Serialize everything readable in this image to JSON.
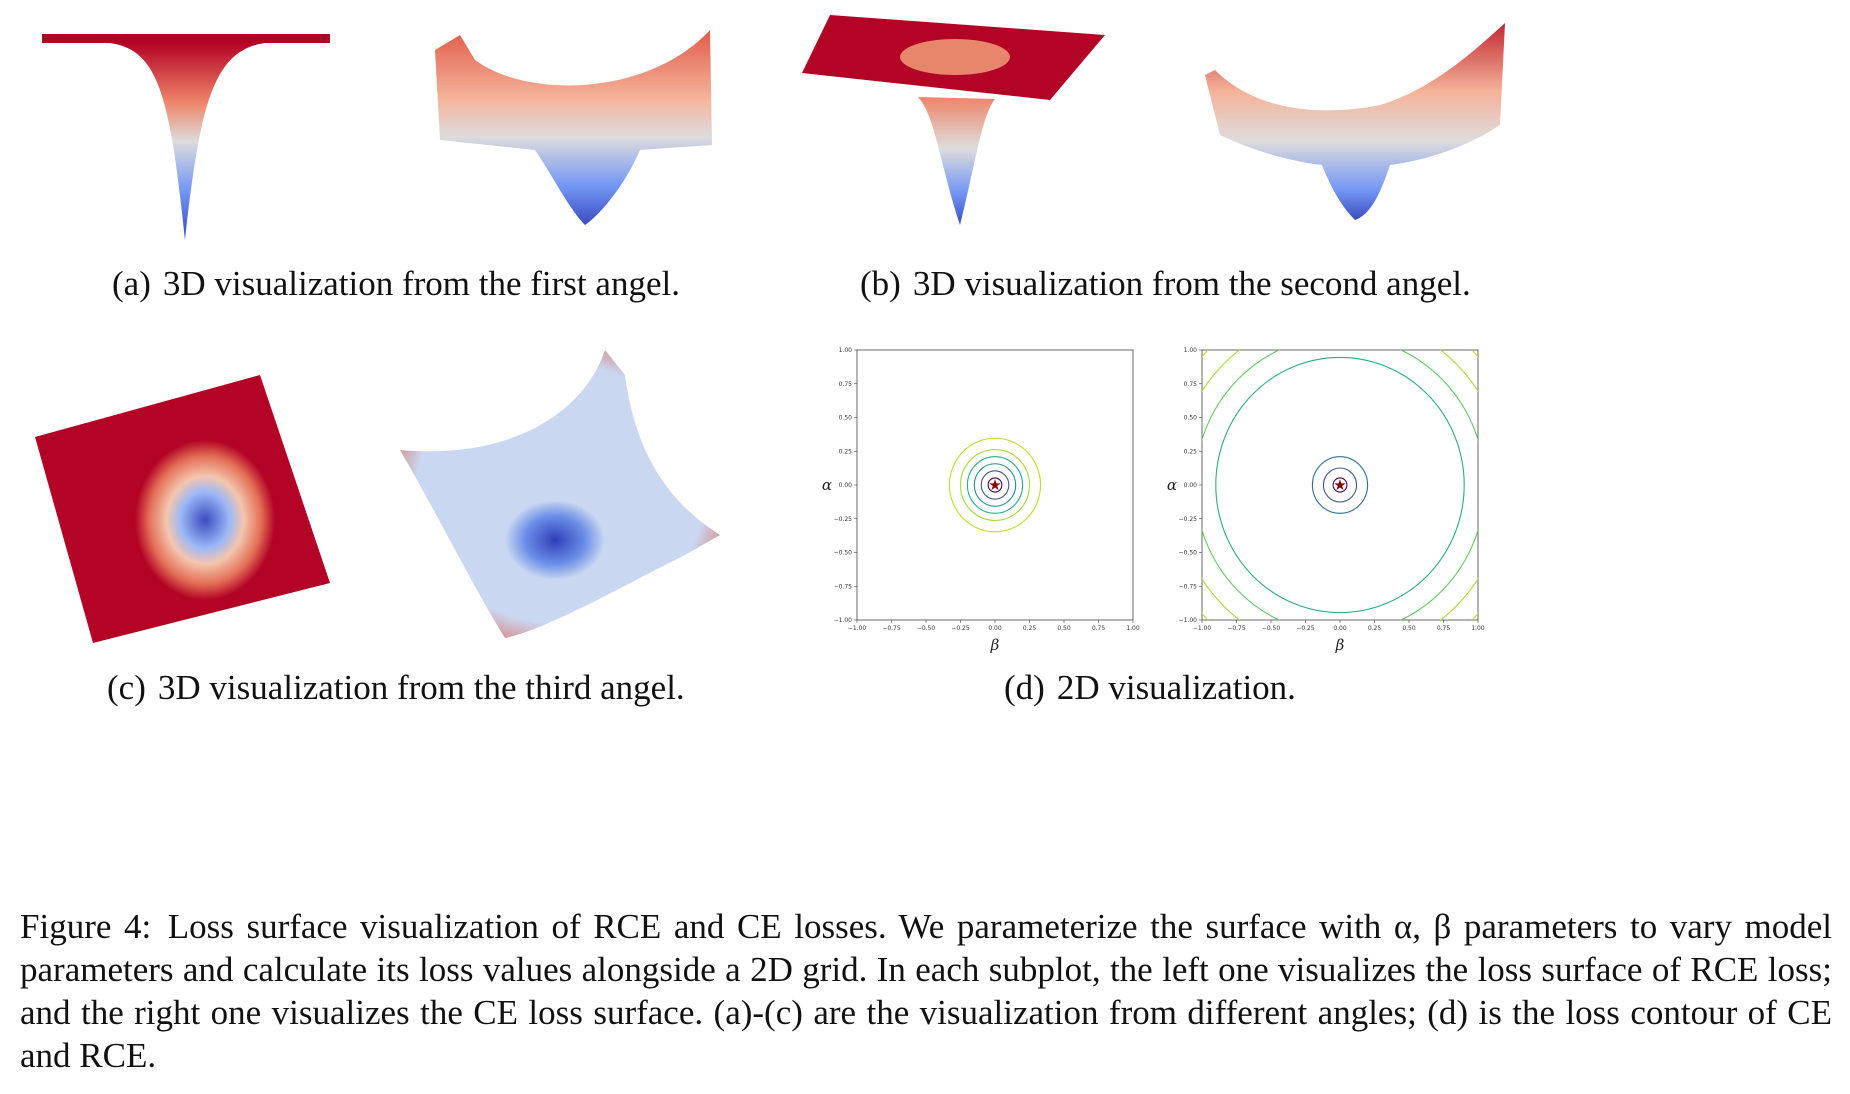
{
  "subcaptions": {
    "a": {
      "tag": "(a)",
      "text": "3D visualization from the first angel."
    },
    "b": {
      "tag": "(b)",
      "text": "3D visualization from the second angel."
    },
    "c": {
      "tag": "(c)",
      "text": "3D visualization from the third angel."
    },
    "d": {
      "tag": "(d)",
      "text": "2D visualization."
    }
  },
  "caption": {
    "label": "Figure 4:",
    "text": "Loss surface visualization of RCE and CE losses. We parameterize the surface with α, β parameters to vary model parameters and calculate its loss values alongside a 2D grid. In each subplot, the left one visualizes the loss surface of RCE loss; and the right one visualizes the CE loss surface. (a)-(c) are the visualization from different angles; (d) is the loss contour of CE and RCE."
  },
  "colors": {
    "surface_high": "#b40426",
    "surface_mid": "#dddcdc",
    "surface_low": "#3b4cc0",
    "contour_inner": "#440154",
    "contour_mid": "#21918c",
    "contour_outer": "#bddf26",
    "star": "#8b0000"
  },
  "chart_data": [
    {
      "type": "contour",
      "xlabel": "β",
      "ylabel": "α",
      "xlim": [
        -1.0,
        1.0
      ],
      "ylim": [
        -1.0,
        1.0
      ],
      "x_ticks": [
        "−1.00",
        "−0.75",
        "−0.50",
        "−0.25",
        "0.00",
        "0.25",
        "0.50",
        "0.75",
        "1.00"
      ],
      "y_ticks": [
        "1.00",
        "0.75",
        "0.50",
        "0.25",
        "0.00",
        "−0.25",
        "−0.50",
        "−0.75",
        "−1.00"
      ],
      "minimum": [
        0.0,
        0.0
      ],
      "contour_radii": [
        0.05,
        0.1,
        0.15,
        0.2,
        0.25,
        0.33
      ]
    },
    {
      "type": "contour",
      "xlabel": "β",
      "ylabel": "α",
      "xlim": [
        -1.0,
        1.0
      ],
      "ylim": [
        -1.0,
        1.0
      ],
      "x_ticks": [
        "−1.00",
        "−0.75",
        "−0.50",
        "−0.25",
        "0.00",
        "0.25",
        "0.50",
        "0.75",
        "1.00"
      ],
      "y_ticks": [
        "1.00",
        "0.75",
        "0.50",
        "0.25",
        "0.00",
        "−0.25",
        "−0.50",
        "−0.75",
        "−1.00"
      ],
      "minimum": [
        0.0,
        0.0
      ],
      "contour_radii": [
        0.05,
        0.12,
        0.2,
        0.9,
        1.05,
        1.2,
        1.35
      ]
    }
  ]
}
